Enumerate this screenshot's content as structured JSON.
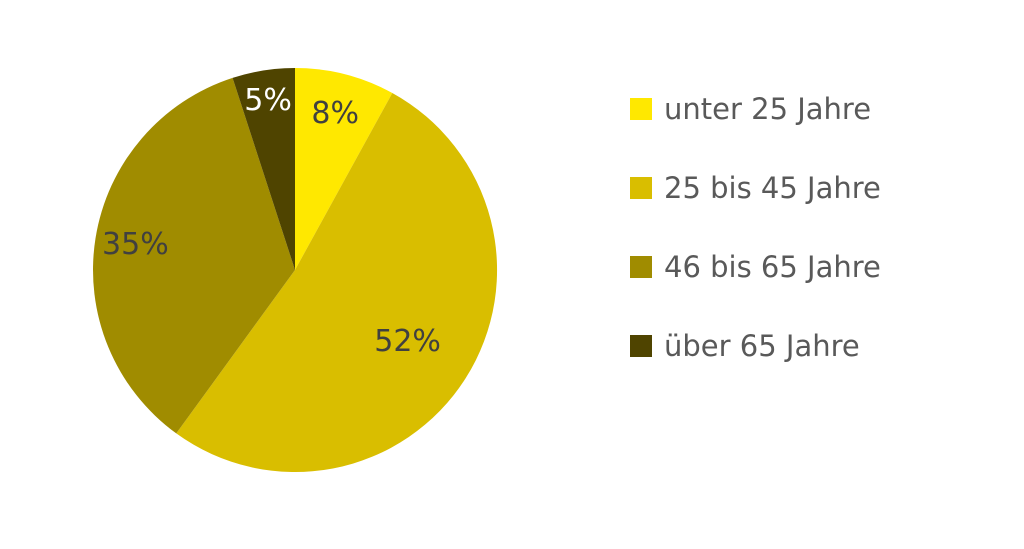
{
  "chart_data": {
    "type": "pie",
    "title": "",
    "categories": [
      "unter 25 Jahre",
      "25 bis 45 Jahre",
      "46 bis 65 Jahre",
      "über 65 Jahre"
    ],
    "values": [
      8,
      52,
      35,
      5
    ],
    "data_labels": [
      "8%",
      "52%",
      "35%",
      "5%"
    ],
    "colors": [
      "#FFE800",
      "#D9BE00",
      "#A08C00",
      "#4F4400"
    ],
    "label_colors": [
      "#404040",
      "#404040",
      "#404040",
      "#ffffff"
    ],
    "start_angle": "12 o'clock",
    "direction": "clockwise",
    "legend_position": "right"
  }
}
